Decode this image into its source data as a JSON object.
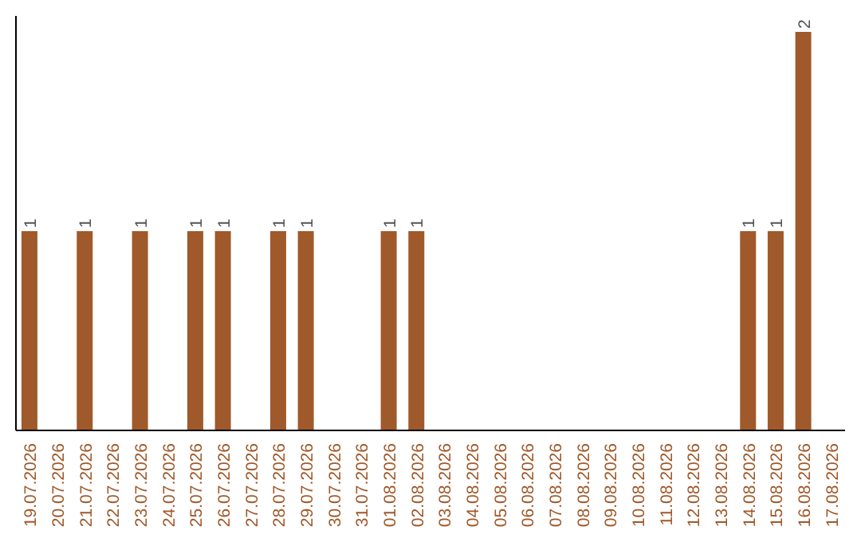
{
  "chart_data": {
    "type": "bar",
    "categories": [
      "19.07.2026",
      "20.07.2026",
      "21.07.2026",
      "22.07.2026",
      "23.07.2026",
      "24.07.2026",
      "25.07.2026",
      "26.07.2026",
      "27.07.2026",
      "28.07.2026",
      "29.07.2026",
      "30.07.2026",
      "31.07.2026",
      "01.08.2026",
      "02.08.2026",
      "03.08.2026",
      "04.08.2026",
      "05.08.2026",
      "06.08.2026",
      "07.08.2026",
      "08.08.2026",
      "09.08.2026",
      "10.08.2026",
      "11.08.2026",
      "12.08.2026",
      "13.08.2026",
      "14.08.2026",
      "15.08.2026",
      "16.08.2026",
      "17.08.2026"
    ],
    "values": [
      1,
      0,
      1,
      0,
      1,
      0,
      1,
      1,
      0,
      1,
      1,
      0,
      0,
      1,
      1,
      0,
      0,
      0,
      0,
      0,
      0,
      0,
      0,
      0,
      0,
      0,
      1,
      1,
      2,
      0
    ],
    "value_labels": [
      "1",
      null,
      "1",
      null,
      "1",
      null,
      "1",
      "1",
      null,
      "1",
      "1",
      null,
      null,
      "1",
      "1",
      null,
      null,
      null,
      null,
      null,
      null,
      null,
      null,
      null,
      null,
      null,
      "1",
      "1",
      "2",
      null
    ],
    "color": "#a0592a",
    "ylim": [
      0,
      2.08
    ],
    "tick_labels": "x",
    "grid": false,
    "legend": false
  }
}
